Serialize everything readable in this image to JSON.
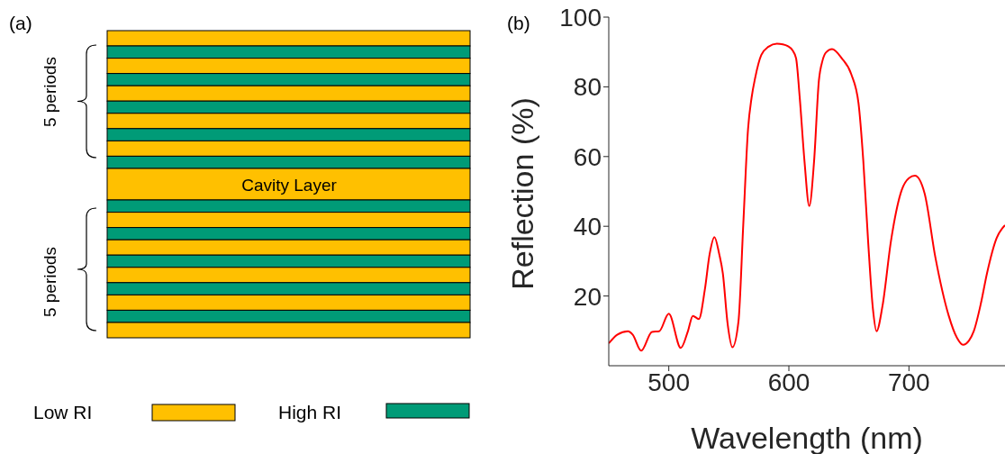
{
  "chart_data": [
    {
      "type": "other",
      "title": "(a)",
      "annotations": [
        "5 periods",
        "5 periods",
        "Cavity Layer",
        "Low RI",
        "High RI"
      ]
    },
    {
      "type": "line",
      "title": "(b)",
      "xlabel": "Wavelength (nm)",
      "ylabel": "Reflection (%)",
      "x": [
        450,
        457,
        466,
        470,
        477,
        486,
        492,
        500,
        510,
        516,
        520,
        525,
        530,
        534,
        538,
        542,
        545,
        549,
        553,
        558,
        562,
        566,
        569,
        572,
        577,
        583,
        590,
        595,
        599,
        603,
        606,
        609,
        613,
        617,
        621,
        625,
        628,
        631,
        636,
        644,
        652,
        658,
        662,
        666,
        670,
        673,
        678,
        685,
        694,
        700,
        705,
        713,
        722,
        733,
        740,
        745,
        750,
        754,
        760,
        765,
        773,
        780
      ],
      "series": [
        {
          "color": "#ff0000",
          "values": [
            6.4,
            8.9,
            9.9,
            8.9,
            4.3,
            9.7,
            9.9,
            14.9,
            5.1,
            10,
            14.3,
            13.4,
            21.8,
            32,
            36.9,
            32,
            26.5,
            12,
            5.3,
            12.6,
            40.3,
            67.9,
            77,
            82.7,
            89.1,
            91.5,
            92.4,
            92.2,
            91.7,
            90.5,
            88.2,
            77.1,
            58.7,
            45.8,
            58.7,
            81.8,
            87.5,
            89.9,
            90.8,
            88.2,
            83.6,
            75.3,
            58.7,
            35.7,
            16.3,
            9.9,
            17.2,
            35.7,
            50.4,
            53.8,
            54.5,
            49.5,
            31.1,
            14.5,
            8,
            6,
            7.2,
            9.9,
            18,
            26.5,
            36.6,
            40.3
          ]
        }
      ],
      "xlim": [
        450,
        780
      ],
      "ylim": [
        0,
        100
      ],
      "xticks": [
        500,
        600,
        700
      ],
      "yticks": [
        20,
        40,
        60,
        80,
        100
      ]
    }
  ]
}
